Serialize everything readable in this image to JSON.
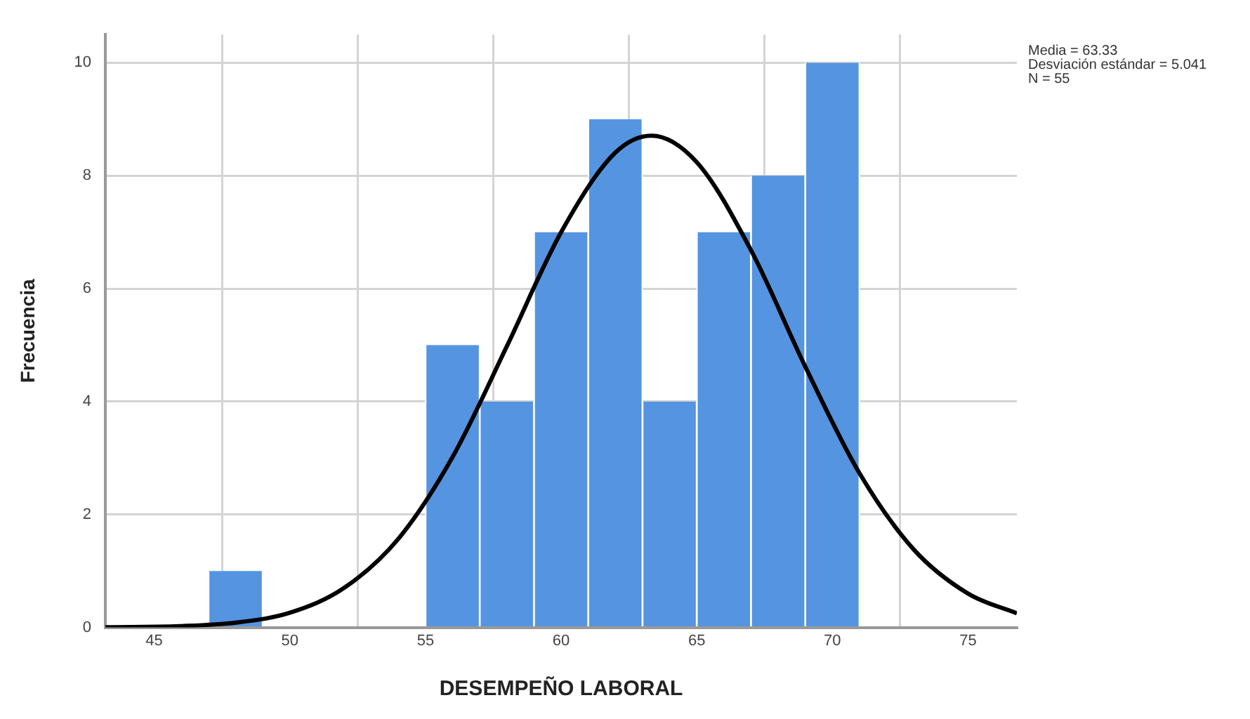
{
  "chart_data": {
    "type": "histogram",
    "xlabel": "DESEMPEÑO LABORAL",
    "ylabel": "Frecuencia",
    "bins": [
      47,
      49,
      51,
      53,
      55,
      57,
      59,
      61,
      63,
      65,
      67,
      69,
      71
    ],
    "values": [
      1,
      0,
      0,
      0,
      5,
      4,
      7,
      9,
      4,
      7,
      8,
      10
    ],
    "color": "#5594e0",
    "series": [
      {
        "type": "line",
        "color": "#000000",
        "x": [
          43.2,
          46,
          48,
          50,
          52,
          54,
          56,
          58,
          60,
          62,
          63.33,
          65,
          67,
          69,
          71,
          73,
          75,
          76.8
        ],
        "values": [
          0.004,
          0.024,
          0.085,
          0.26,
          0.7,
          1.57,
          3.02,
          4.98,
          7.0,
          8.41,
          8.71,
          8.24,
          6.68,
          4.62,
          2.73,
          1.38,
          0.6,
          0.25
        ]
      }
    ],
    "xlim": [
      43.2,
      76.8
    ],
    "xticks": [
      45,
      50,
      55,
      60,
      65,
      70,
      75
    ],
    "ylim": [
      0,
      10.5
    ],
    "yticks": [
      0,
      2,
      4,
      6,
      8,
      10
    ],
    "grid": true,
    "marker": "none",
    "line_style": "solid",
    "annotations": [
      "Media = 63.33",
      "Desviación estándar = 5.041",
      "N = 55"
    ]
  }
}
